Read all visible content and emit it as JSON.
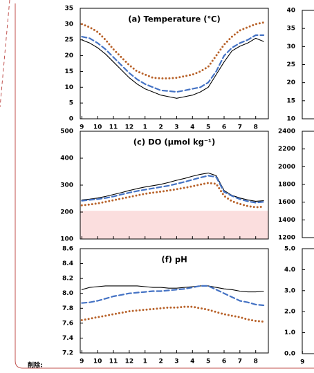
{
  "label": "削除:",
  "chart_data": [
    {
      "type": "line",
      "title": "(a) Temperature (℃)",
      "x": [
        0,
        0.5,
        1,
        1.5,
        2,
        2.5,
        3,
        3.5,
        4,
        4.5,
        5,
        5.5,
        6,
        6.5,
        7,
        7.5,
        8,
        8.5,
        9,
        9.5,
        10,
        10.5,
        11,
        11.5
      ],
      "xlim": [
        -0.1,
        11.8
      ],
      "xticks": [
        {
          "value": 0,
          "label": "9"
        },
        {
          "value": 1,
          "label": "10"
        },
        {
          "value": 2,
          "label": "11"
        },
        {
          "value": 3,
          "label": "12"
        },
        {
          "value": 4,
          "label": "1"
        },
        {
          "value": 5,
          "label": "2"
        },
        {
          "value": 6,
          "label": "3"
        },
        {
          "value": 7,
          "label": "4"
        },
        {
          "value": 8,
          "label": "5"
        },
        {
          "value": 9,
          "label": "6"
        },
        {
          "value": 10,
          "label": "7"
        },
        {
          "value": 11,
          "label": "8"
        }
      ],
      "ylim": [
        0,
        35
      ],
      "yticks": [
        0,
        5,
        10,
        15,
        20,
        25,
        30,
        35
      ],
      "series": [
        {
          "color": "#000000",
          "dash": "solid",
          "values": [
            25,
            24,
            22.5,
            20.5,
            18,
            15.5,
            13,
            11,
            9.5,
            8.5,
            7.5,
            7,
            6.5,
            7,
            7.5,
            8.5,
            10,
            14,
            18,
            21.5,
            23,
            24,
            25.5,
            24.5
          ]
        },
        {
          "color": "#4472c4",
          "dash": "dashed",
          "values": [
            26,
            25.5,
            24,
            22,
            19.5,
            17,
            14.5,
            12.5,
            11,
            10,
            9,
            8.8,
            8.5,
            9,
            9.5,
            10,
            11.5,
            15,
            20,
            22.5,
            24,
            25,
            26.5,
            26.5
          ]
        },
        {
          "color": "#b8622a",
          "dash": "dotted",
          "values": [
            30,
            29,
            27.5,
            25,
            22,
            19.5,
            17,
            15,
            14,
            13,
            12.8,
            12.8,
            13,
            13.5,
            14,
            15,
            16.5,
            20,
            23.5,
            26,
            28,
            29,
            30,
            30.5
          ]
        }
      ]
    },
    {
      "type": "line",
      "title": "(c) DO (μmol kg⁻¹)",
      "x": [
        0,
        0.5,
        1,
        1.5,
        2,
        2.5,
        3,
        3.5,
        4,
        4.5,
        5,
        5.5,
        6,
        6.5,
        7,
        7.5,
        8,
        8.5,
        9,
        9.5,
        10,
        10.5,
        11,
        11.5
      ],
      "xlim": [
        -0.1,
        11.8
      ],
      "xticks": [
        {
          "value": 0,
          "label": "9"
        },
        {
          "value": 1,
          "label": "10"
        },
        {
          "value": 2,
          "label": "11"
        },
        {
          "value": 3,
          "label": "12"
        },
        {
          "value": 4,
          "label": "1"
        },
        {
          "value": 5,
          "label": "2"
        },
        {
          "value": 6,
          "label": "3"
        },
        {
          "value": 7,
          "label": "4"
        },
        {
          "value": 8,
          "label": "5"
        },
        {
          "value": 9,
          "label": "6"
        },
        {
          "value": 10,
          "label": "7"
        },
        {
          "value": 11,
          "label": "8"
        }
      ],
      "ylim": [
        100,
        500
      ],
      "yticks": [
        100,
        200,
        300,
        400,
        500
      ],
      "band": [
        100,
        205
      ],
      "band_color": "#fbdede",
      "series": [
        {
          "color": "#000000",
          "dash": "solid",
          "values": [
            245,
            248,
            252,
            258,
            265,
            272,
            280,
            287,
            293,
            298,
            303,
            310,
            318,
            325,
            333,
            340,
            345,
            335,
            280,
            262,
            252,
            245,
            240,
            242
          ]
        },
        {
          "color": "#4472c4",
          "dash": "dashed",
          "values": [
            242,
            245,
            248,
            252,
            258,
            265,
            272,
            278,
            283,
            288,
            293,
            298,
            305,
            312,
            320,
            328,
            335,
            330,
            275,
            260,
            248,
            240,
            235,
            238
          ]
        },
        {
          "color": "#b8622a",
          "dash": "dotted",
          "values": [
            225,
            228,
            232,
            238,
            244,
            250,
            256,
            262,
            268,
            272,
            276,
            280,
            285,
            290,
            296,
            302,
            308,
            305,
            260,
            240,
            230,
            222,
            218,
            220
          ]
        }
      ]
    },
    {
      "type": "line",
      "title": "(f) pH",
      "x": [
        0,
        0.5,
        1,
        1.5,
        2,
        2.5,
        3,
        3.5,
        4,
        4.5,
        5,
        5.5,
        6,
        6.5,
        7,
        7.5,
        8,
        8.5,
        9,
        9.5,
        10,
        10.5,
        11,
        11.5
      ],
      "xlim": [
        -0.1,
        11.8
      ],
      "xticks": [
        {
          "value": 0,
          "label": "9"
        },
        {
          "value": 1,
          "label": "10"
        },
        {
          "value": 2,
          "label": "11"
        },
        {
          "value": 3,
          "label": "12"
        },
        {
          "value": 4,
          "label": "1"
        },
        {
          "value": 5,
          "label": "2"
        },
        {
          "value": 6,
          "label": "3"
        },
        {
          "value": 7,
          "label": "4"
        },
        {
          "value": 8,
          "label": "5"
        },
        {
          "value": 9,
          "label": "6"
        },
        {
          "value": 10,
          "label": "7"
        },
        {
          "value": 11,
          "label": "8"
        }
      ],
      "xtick_labels_shown": true,
      "ylim": [
        7.2,
        8.6
      ],
      "yticks": [
        7.2,
        7.4,
        7.6,
        7.8,
        {
          "value": 8,
          "label": "8.0"
        },
        8.2,
        8.4,
        8.6
      ],
      "series": [
        {
          "color": "#000000",
          "dash": "solid",
          "values": [
            8.05,
            8.08,
            8.09,
            8.1,
            8.1,
            8.1,
            8.1,
            8.1,
            8.09,
            8.08,
            8.08,
            8.07,
            8.07,
            8.08,
            8.09,
            8.1,
            8.1,
            8.08,
            8.06,
            8.05,
            8.03,
            8.02,
            8.02,
            8.03
          ]
        },
        {
          "color": "#4472c4",
          "dash": "dashed",
          "values": [
            7.87,
            7.88,
            7.9,
            7.93,
            7.96,
            7.98,
            8.0,
            8.01,
            8.02,
            8.03,
            8.03,
            8.04,
            8.05,
            8.06,
            8.08,
            8.1,
            8.1,
            8.05,
            8.0,
            7.95,
            7.9,
            7.88,
            7.85,
            7.84
          ]
        },
        {
          "color": "#b8622a",
          "dash": "dotted",
          "values": [
            7.64,
            7.66,
            7.68,
            7.7,
            7.72,
            7.74,
            7.76,
            7.77,
            7.78,
            7.79,
            7.8,
            7.81,
            7.81,
            7.82,
            7.82,
            7.8,
            7.78,
            7.75,
            7.72,
            7.7,
            7.68,
            7.65,
            7.63,
            7.62
          ]
        }
      ]
    },
    {
      "type": "line",
      "ylim": [
        10,
        40
      ],
      "yticks": [
        10,
        15,
        20,
        25,
        30,
        35,
        40
      ]
    },
    {
      "type": "line",
      "ylim": [
        1200,
        2400
      ],
      "yticks": [
        1200,
        1400,
        1600,
        1800,
        2000,
        2200,
        2400
      ]
    },
    {
      "type": "line",
      "ylim": [
        0,
        5
      ],
      "yticks": [
        {
          "value": 0,
          "label": "0.0"
        },
        {
          "value": 1,
          "label": "1.0"
        },
        {
          "value": 2,
          "label": "2.0"
        },
        {
          "value": 3,
          "label": "3.0"
        },
        {
          "value": 4,
          "label": "4.0"
        },
        {
          "value": 5,
          "label": "5.0"
        }
      ],
      "xlim": [
        -0.1,
        11.8
      ],
      "xticks": [
        {
          "value": 0,
          "label": "9"
        }
      ]
    }
  ]
}
